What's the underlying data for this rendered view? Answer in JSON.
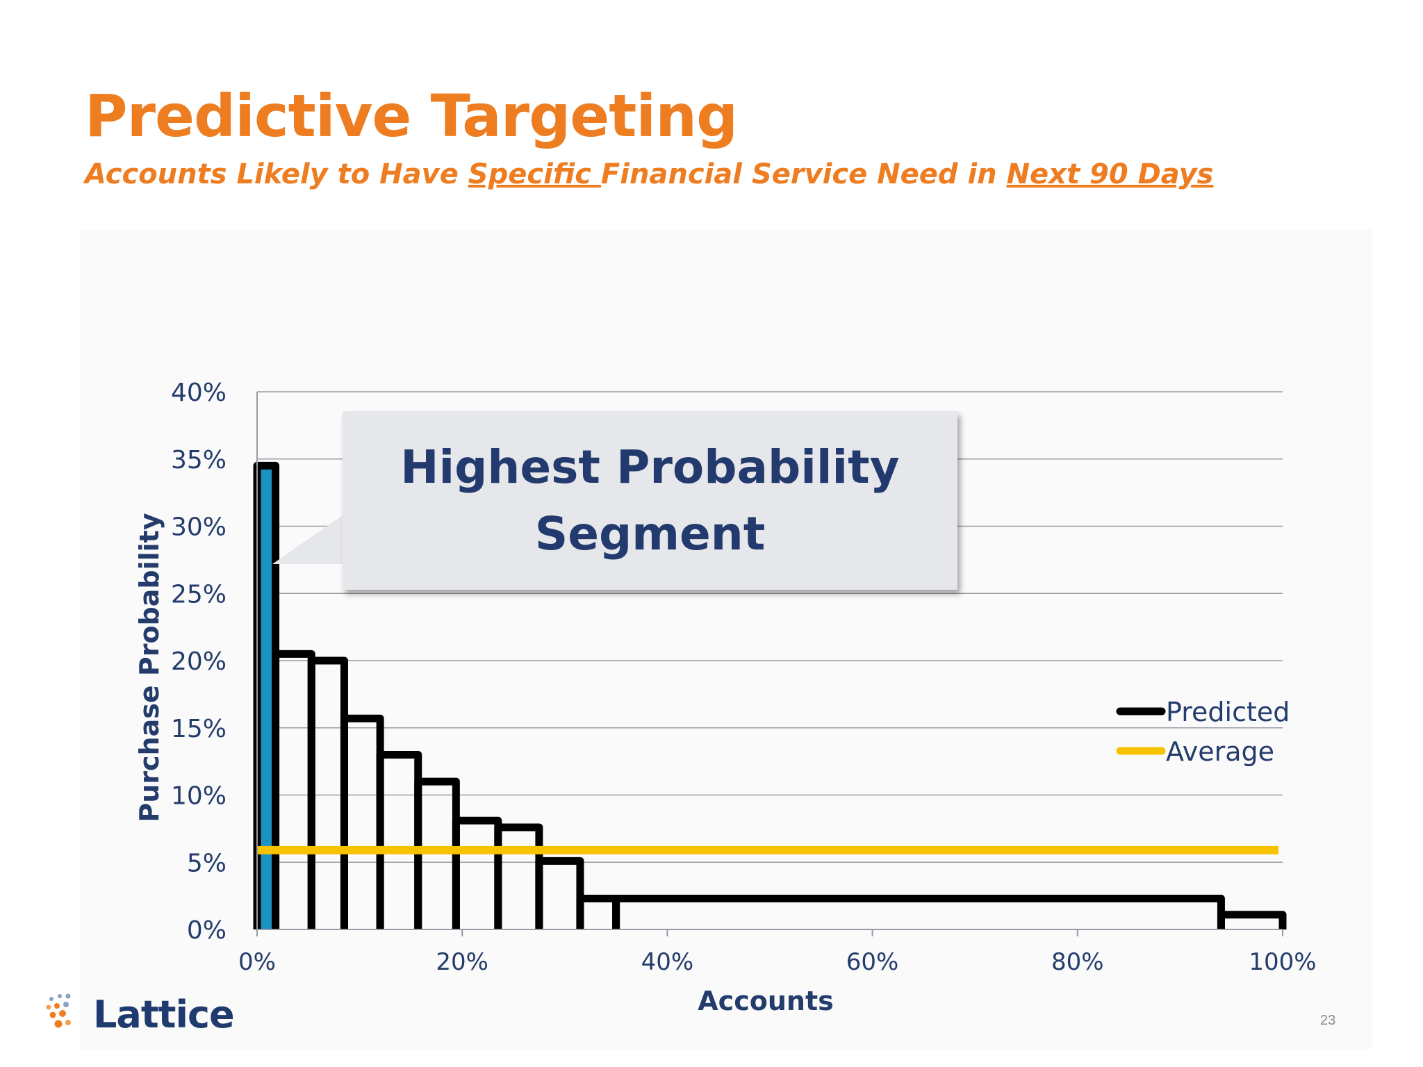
{
  "title": "Predictive Targeting",
  "subtitle": {
    "part1": "Accounts Likely to Have ",
    "part2": "Specific ",
    "part3": "Financial Service Need in ",
    "part4": "Next 90 Days"
  },
  "callout": {
    "line1": "Highest Probability",
    "line2": "Segment"
  },
  "logo": {
    "text": "Lattice",
    "mark": "lattice-dots-icon"
  },
  "page_number": "23",
  "colors": {
    "title": "#ee7d22",
    "predicted": "#000000",
    "average": "#f7c200",
    "highlight": "#1a93c1",
    "axis_text": "#243c6b"
  },
  "chart_data": {
    "type": "step",
    "title": "",
    "xlabel": "Accounts",
    "ylabel": "Purchase Probability",
    "xlim": [
      0,
      100
    ],
    "ylim": [
      0,
      40
    ],
    "x_ticks": [
      "0%",
      "20%",
      "40%",
      "60%",
      "80%",
      "100%"
    ],
    "y_ticks": [
      "0%",
      "5%",
      "10%",
      "15%",
      "20%",
      "25%",
      "30%",
      "35%",
      "40%"
    ],
    "grid": true,
    "legend_position": "right",
    "series": [
      {
        "name": "Predicted",
        "segments": [
          {
            "x0": 0,
            "x1": 1.8,
            "y": 34.5
          },
          {
            "x0": 1.8,
            "x1": 5.3,
            "y": 20.5
          },
          {
            "x0": 5.3,
            "x1": 8.5,
            "y": 20
          },
          {
            "x0": 8.5,
            "x1": 12,
            "y": 15.7
          },
          {
            "x0": 12,
            "x1": 15.7,
            "y": 13
          },
          {
            "x0": 15.7,
            "x1": 19.4,
            "y": 11
          },
          {
            "x0": 19.4,
            "x1": 23.5,
            "y": 8.1
          },
          {
            "x0": 23.5,
            "x1": 27.5,
            "y": 7.6
          },
          {
            "x0": 27.5,
            "x1": 31.5,
            "y": 5.1
          },
          {
            "x0": 31.5,
            "x1": 35,
            "y": 2.3
          },
          {
            "x0": 35,
            "x1": 94,
            "y": 2.3
          },
          {
            "x0": 94,
            "x1": 100,
            "y": 1.1
          }
        ]
      },
      {
        "name": "Average",
        "y": 5.9
      }
    ],
    "highlight_segment": 0
  }
}
